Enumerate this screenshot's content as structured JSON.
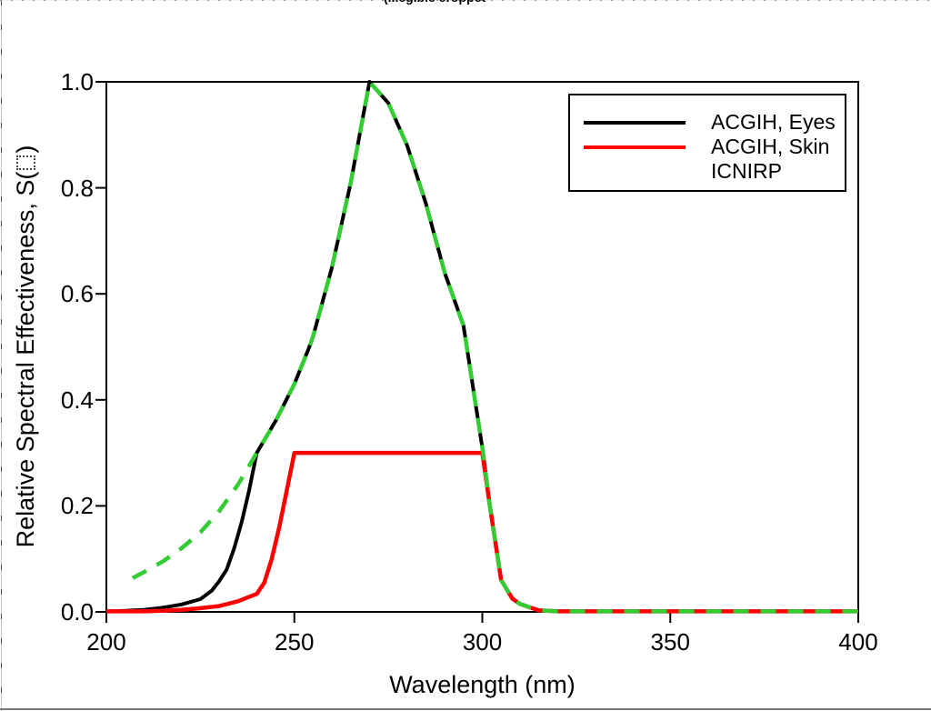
{
  "header": {
    "cropped_title_fragment": "(illegible cropped title)"
  },
  "axis": {
    "xlabel": "Wavelength (nm)",
    "ylabel_prefix": "Relative Spectral Effectiveness, S(",
    "ylabel_suffix": ")",
    "ylabel_note": "lambda symbol rendered as a missing-glyph dotted box in the source image"
  },
  "legend": {
    "items": [
      {
        "label": "ACGIH, Eyes",
        "color": "#000000",
        "show_line": true
      },
      {
        "label": "ACGIH, Skin",
        "color": "#ff0000",
        "show_line": true
      },
      {
        "label": "ICNIRP",
        "color": null,
        "show_line": false
      }
    ]
  },
  "chart_data": {
    "type": "line",
    "title": "",
    "xlabel": "Wavelength (nm)",
    "ylabel": "Relative Spectral Effectiveness, S(lambda)",
    "xlim": [
      200,
      400
    ],
    "ylim": [
      0,
      1.0
    ],
    "x_ticks": [
      200,
      250,
      300,
      350,
      400
    ],
    "y_ticks": [
      "0.0",
      "0.2",
      "0.4",
      "0.6",
      "0.8",
      "1.0"
    ],
    "grid": false,
    "legend_position": "upper right",
    "series": [
      {
        "name": "ACGIH, Eyes",
        "color": "#000000",
        "width": 4,
        "dash": null,
        "points": [
          [
            200,
            0.001
          ],
          [
            205,
            0.002
          ],
          [
            210,
            0.004
          ],
          [
            215,
            0.008
          ],
          [
            220,
            0.014
          ],
          [
            225,
            0.024
          ],
          [
            228,
            0.04
          ],
          [
            230,
            0.058
          ],
          [
            232,
            0.08
          ],
          [
            234,
            0.12
          ],
          [
            236,
            0.17
          ],
          [
            238,
            0.23
          ],
          [
            240,
            0.3
          ],
          [
            245,
            0.36
          ],
          [
            250,
            0.43
          ],
          [
            254,
            0.5
          ],
          [
            255,
            0.52
          ],
          [
            260,
            0.65
          ],
          [
            265,
            0.81
          ],
          [
            270,
            1.0
          ],
          [
            275,
            0.96
          ],
          [
            280,
            0.88
          ],
          [
            285,
            0.77
          ],
          [
            290,
            0.64
          ],
          [
            295,
            0.54
          ],
          [
            300,
            0.31
          ],
          [
            302,
            0.2
          ],
          [
            305,
            0.06
          ],
          [
            308,
            0.025
          ],
          [
            310,
            0.015
          ],
          [
            315,
            0.003
          ],
          [
            320,
            0.001
          ],
          [
            330,
            0.001
          ],
          [
            400,
            0.001
          ]
        ]
      },
      {
        "name": "ACGIH, Skin",
        "color": "#ff0000",
        "width": 4.5,
        "dash": null,
        "points": [
          [
            200,
            0.001
          ],
          [
            210,
            0.001
          ],
          [
            215,
            0.002
          ],
          [
            220,
            0.004
          ],
          [
            225,
            0.007
          ],
          [
            230,
            0.011
          ],
          [
            235,
            0.02
          ],
          [
            240,
            0.034
          ],
          [
            242,
            0.055
          ],
          [
            244,
            0.1
          ],
          [
            246,
            0.16
          ],
          [
            248,
            0.23
          ],
          [
            250,
            0.3
          ],
          [
            300,
            0.3
          ],
          [
            302,
            0.2
          ],
          [
            305,
            0.06
          ],
          [
            308,
            0.025
          ],
          [
            310,
            0.015
          ],
          [
            315,
            0.003
          ],
          [
            320,
            0.001
          ],
          [
            330,
            0.001
          ],
          [
            400,
            0.001
          ]
        ]
      },
      {
        "name": "ICNIRP",
        "color": "#33cc33",
        "width": 4.5,
        "dash": [
          17,
          13
        ],
        "points": [
          [
            207,
            0.064
          ],
          [
            210,
            0.075
          ],
          [
            215,
            0.095
          ],
          [
            220,
            0.12
          ],
          [
            225,
            0.15
          ],
          [
            230,
            0.19
          ],
          [
            235,
            0.24
          ],
          [
            240,
            0.3
          ],
          [
            245,
            0.36
          ],
          [
            250,
            0.43
          ],
          [
            254,
            0.5
          ],
          [
            255,
            0.52
          ],
          [
            260,
            0.65
          ],
          [
            265,
            0.81
          ],
          [
            270,
            1.0
          ],
          [
            275,
            0.96
          ],
          [
            280,
            0.88
          ],
          [
            285,
            0.77
          ],
          [
            290,
            0.64
          ],
          [
            295,
            0.54
          ],
          [
            300,
            0.31
          ],
          [
            302,
            0.2
          ],
          [
            305,
            0.06
          ],
          [
            308,
            0.025
          ],
          [
            310,
            0.015
          ],
          [
            315,
            0.003
          ],
          [
            320,
            0.001
          ],
          [
            330,
            0.001
          ],
          [
            400,
            0.001
          ]
        ]
      }
    ]
  }
}
